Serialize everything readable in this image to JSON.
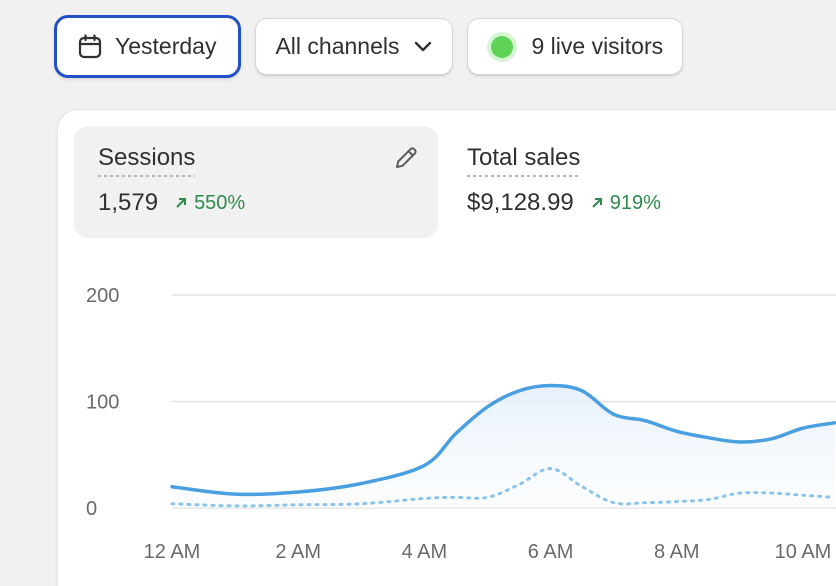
{
  "filters": {
    "date_label": "Yesterday",
    "channel_label": "All channels",
    "live_visitors_label": "9 live visitors"
  },
  "metrics": {
    "sessions": {
      "label": "Sessions",
      "value": "1,579",
      "change": "550%"
    },
    "total_sales": {
      "label": "Total sales",
      "value": "$9,128.99",
      "change": "919%"
    }
  },
  "colors": {
    "accent_focus": "#2250c7",
    "live_dot": "#5fd357",
    "positive": "#2f8a4d",
    "series_primary": "#4a9fe0",
    "series_comparison": "#8cc3ea"
  },
  "icons": {
    "date": "calendar-icon",
    "channel": "chevron-down-icon",
    "live": "live-dot-icon",
    "edit": "pencil-icon",
    "trend": "arrow-up-right-icon"
  },
  "chart_data": {
    "type": "line",
    "ylim": [
      0,
      200
    ],
    "yticks": [
      "200",
      "100",
      "0"
    ],
    "xticks": [
      "12 AM",
      "2 AM",
      "4 AM",
      "6 AM",
      "8 AM",
      "10 AM"
    ],
    "grid": true,
    "series": [
      {
        "style": "solid-area",
        "x_hours": [
          0,
          1,
          2,
          3,
          4,
          4.5,
          5,
          5.5,
          6,
          6.5,
          7,
          7.5,
          8,
          8.5,
          9,
          9.5,
          10,
          10.5
        ],
        "values": [
          20,
          13,
          15,
          23,
          40,
          70,
          95,
          110,
          115,
          110,
          88,
          82,
          72,
          66,
          62,
          65,
          75,
          80
        ]
      },
      {
        "style": "dotted",
        "x_hours": [
          0,
          1,
          2,
          3,
          4,
          4.5,
          5,
          5.5,
          6,
          6.5,
          7,
          7.5,
          8,
          8.5,
          9,
          9.5,
          10,
          10.5
        ],
        "values": [
          4,
          2,
          3,
          4,
          9,
          10,
          10,
          22,
          37,
          20,
          5,
          5,
          6,
          8,
          14,
          14,
          12,
          10
        ]
      }
    ]
  }
}
